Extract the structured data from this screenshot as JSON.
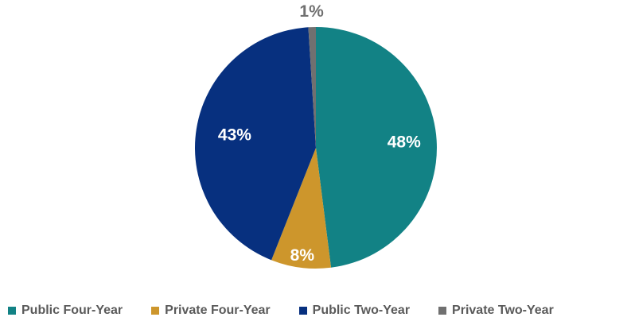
{
  "chart_data": {
    "type": "pie",
    "title": "",
    "categories": [
      "Public Four-Year",
      "Private Four-Year",
      "Public Two-Year",
      "Private Two-Year"
    ],
    "values": [
      48,
      8,
      43,
      1
    ],
    "value_labels": [
      "48%",
      "8%",
      "43%",
      "1%"
    ],
    "colors": [
      "#128285",
      "#cd962c",
      "#07307f",
      "#707070"
    ],
    "label_colors": [
      "#ffffff",
      "#ffffff",
      "#ffffff",
      "#707070"
    ],
    "start_angle_deg": 0,
    "direction": "clockwise",
    "legend_position": "bottom"
  }
}
